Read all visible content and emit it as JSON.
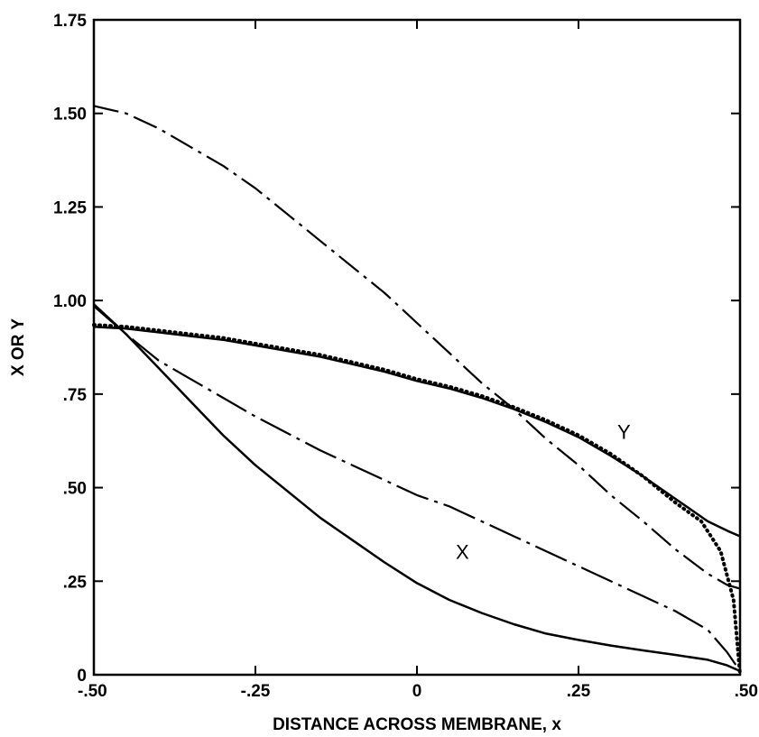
{
  "chart_data": {
    "type": "line",
    "title": "",
    "xlabel": "DISTANCE ACROSS MEMBRANE, x",
    "ylabel": "X OR Y",
    "xlim": [
      -0.5,
      0.5
    ],
    "ylim": [
      0,
      1.75
    ],
    "grid": false,
    "x_ticks": [
      {
        "value": -0.5,
        "label": "-.50"
      },
      {
        "value": -0.25,
        "label": "-.25"
      },
      {
        "value": 0,
        "label": "0"
      },
      {
        "value": 0.25,
        "label": ".25"
      },
      {
        "value": 0.5,
        "label": ".50"
      }
    ],
    "y_ticks": [
      {
        "value": 0,
        "label": "0"
      },
      {
        "value": 0.25,
        "label": ".25"
      },
      {
        "value": 0.5,
        "label": ".50"
      },
      {
        "value": 0.75,
        "label": ".75"
      },
      {
        "value": 1.0,
        "label": "1.00"
      },
      {
        "value": 1.25,
        "label": "1.25"
      },
      {
        "value": 1.5,
        "label": "1.50"
      },
      {
        "value": 1.75,
        "label": "1.75"
      }
    ],
    "series": [
      {
        "style": "solid",
        "x": [
          -0.5,
          -0.45,
          -0.4,
          -0.35,
          -0.3,
          -0.25,
          -0.2,
          -0.15,
          -0.1,
          -0.05,
          0,
          0.05,
          0.1,
          0.15,
          0.2,
          0.25,
          0.3,
          0.35,
          0.4,
          0.45,
          0.48,
          0.5
        ],
        "y": [
          0.99,
          0.91,
          0.82,
          0.73,
          0.64,
          0.56,
          0.49,
          0.42,
          0.36,
          0.3,
          0.245,
          0.2,
          0.165,
          0.135,
          0.11,
          0.093,
          0.078,
          0.065,
          0.053,
          0.04,
          0.025,
          0.01
        ]
      },
      {
        "style": "solid",
        "x": [
          -0.5,
          -0.45,
          -0.4,
          -0.35,
          -0.3,
          -0.25,
          -0.2,
          -0.15,
          -0.1,
          -0.05,
          0,
          0.05,
          0.1,
          0.15,
          0.2,
          0.25,
          0.3,
          0.35,
          0.4,
          0.45,
          0.48,
          0.5
        ],
        "y": [
          0.93,
          0.925,
          0.915,
          0.905,
          0.895,
          0.88,
          0.865,
          0.85,
          0.83,
          0.81,
          0.785,
          0.765,
          0.74,
          0.71,
          0.675,
          0.635,
          0.585,
          0.53,
          0.47,
          0.41,
          0.385,
          0.37
        ]
      },
      {
        "style": "dotted",
        "x": [
          -0.5,
          -0.45,
          -0.4,
          -0.35,
          -0.3,
          -0.25,
          -0.2,
          -0.15,
          -0.1,
          -0.05,
          0,
          0.05,
          0.1,
          0.15,
          0.2,
          0.25,
          0.3,
          0.35,
          0.4,
          0.44,
          0.47,
          0.49,
          0.5
        ],
        "y": [
          0.935,
          0.93,
          0.92,
          0.91,
          0.9,
          0.885,
          0.87,
          0.855,
          0.835,
          0.815,
          0.79,
          0.77,
          0.745,
          0.715,
          0.68,
          0.64,
          0.59,
          0.53,
          0.46,
          0.41,
          0.33,
          0.2,
          0.0
        ]
      },
      {
        "style": "dashdot",
        "x": [
          -0.5,
          -0.45,
          -0.4,
          -0.35,
          -0.3,
          -0.25,
          -0.2,
          -0.15,
          -0.1,
          -0.05,
          0,
          0.05,
          0.1,
          0.15,
          0.2,
          0.25,
          0.3,
          0.35,
          0.4,
          0.45,
          0.48,
          0.5
        ],
        "y": [
          1.52,
          1.5,
          1.46,
          1.41,
          1.36,
          1.3,
          1.23,
          1.16,
          1.09,
          1.02,
          0.94,
          0.86,
          0.78,
          0.71,
          0.63,
          0.56,
          0.48,
          0.41,
          0.335,
          0.27,
          0.24,
          0.23
        ]
      },
      {
        "style": "longdashdot",
        "x": [
          -0.5,
          -0.45,
          -0.4,
          -0.35,
          -0.3,
          -0.25,
          -0.2,
          -0.15,
          -0.1,
          -0.05,
          0,
          0.05,
          0.1,
          0.15,
          0.2,
          0.25,
          0.3,
          0.35,
          0.4,
          0.45,
          0.48,
          0.5
        ],
        "y": [
          0.985,
          0.91,
          0.84,
          0.79,
          0.74,
          0.69,
          0.645,
          0.6,
          0.56,
          0.52,
          0.48,
          0.45,
          0.41,
          0.37,
          0.33,
          0.29,
          0.25,
          0.21,
          0.17,
          0.12,
          0.06,
          0.01
        ]
      }
    ],
    "annotations": [
      {
        "text": "Y",
        "x": 0.31,
        "y": 0.63
      },
      {
        "text": "X",
        "x": 0.06,
        "y": 0.31
      }
    ]
  }
}
